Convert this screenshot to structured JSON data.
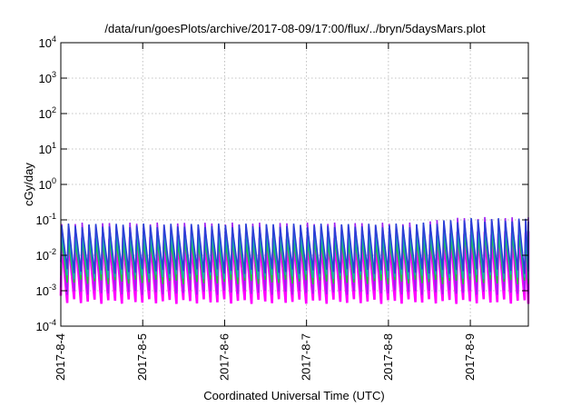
{
  "chart_data": {
    "type": "line",
    "title": "/data/run/goesPlots/archive/2017-08-09/17:00/flux/../bryn/5daysMars.plot",
    "xlabel": "Coordinated Universal Time (UTC)",
    "ylabel": "cGy/day",
    "y_scale": "log",
    "ylim": [
      0.0001,
      10000
    ],
    "y_ticks": [
      {
        "base": "10",
        "exp": "-4"
      },
      {
        "base": "10",
        "exp": "-3"
      },
      {
        "base": "10",
        "exp": "-2"
      },
      {
        "base": "10",
        "exp": "-1"
      },
      {
        "base": "10",
        "exp": "0"
      },
      {
        "base": "10",
        "exp": "1"
      },
      {
        "base": "10",
        "exp": "2"
      },
      {
        "base": "10",
        "exp": "3"
      },
      {
        "base": "10",
        "exp": "4"
      }
    ],
    "x_ticks": [
      "2017-8-4",
      "2017-8-5",
      "2017-8-6",
      "2017-8-7",
      "2017-8-8",
      "2017-8-9"
    ],
    "xlim": [
      "2017-08-04 00:00",
      "2017-08-09 17:00"
    ],
    "grid": true,
    "legend": "none",
    "pattern": {
      "description": "daily-orbit sawtooth, ~12 cycles per day",
      "cycles_per_day": 12,
      "peak_value_early": 0.07,
      "peak_value_late": 0.1
    },
    "series": [
      {
        "color": "#2a3fd6",
        "peak": 0.07,
        "trough": 0.0035
      },
      {
        "color": "#18b0ae",
        "peak": 0.04,
        "trough": 0.0025
      },
      {
        "color": "#23c23a",
        "peak": 0.025,
        "trough": 0.0018
      },
      {
        "color": "#a020f0",
        "peak": 0.075,
        "trough": 0.0009
      },
      {
        "color": "#ff00ff",
        "peak": 0.03,
        "trough": 0.0005
      }
    ]
  }
}
